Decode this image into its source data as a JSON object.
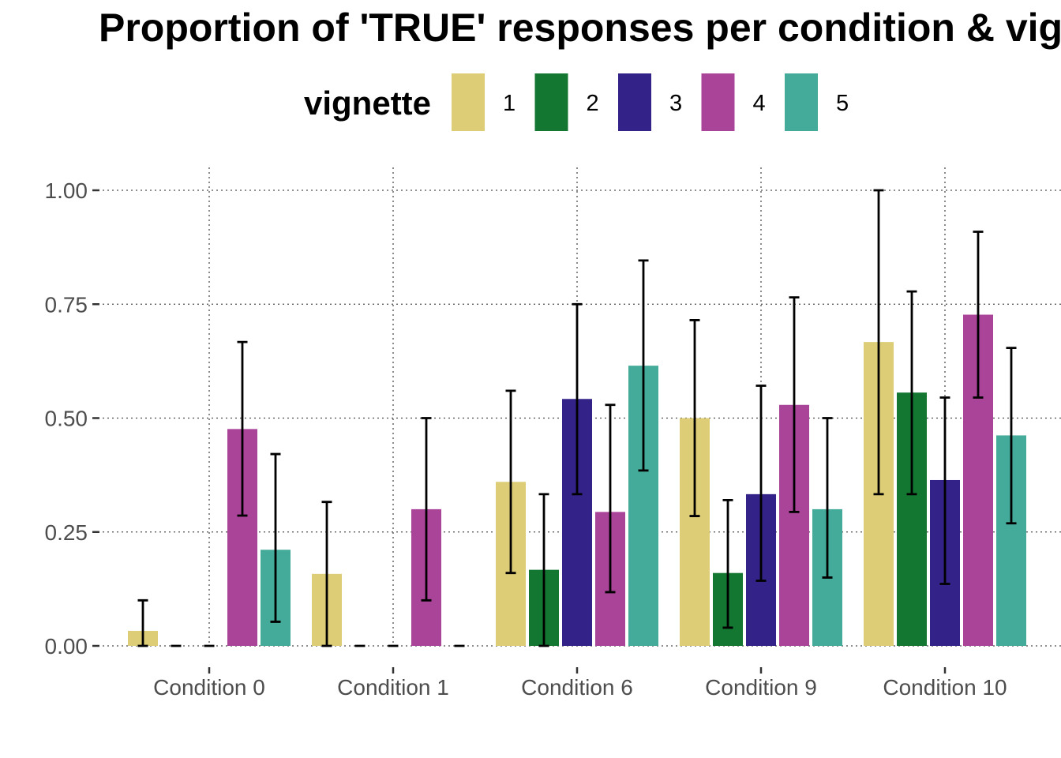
{
  "colors": {
    "series": [
      "#dccd76",
      "#137732",
      "#332288",
      "#aa4499",
      "#44aa99"
    ],
    "grid": "#4d4d4d",
    "tick_text": "#4d4d4d"
  },
  "chart_data": {
    "type": "bar",
    "title": "Proportion of 'TRUE' responses per condition & vig",
    "legend": {
      "title": "vignette",
      "placement": "top"
    },
    "categories": [
      "Condition 0",
      "Condition 1",
      "Condition 6",
      "Condition 9",
      "Condition 10"
    ],
    "ylim": [
      0,
      1
    ],
    "yticks": [
      0.0,
      0.25,
      0.5,
      0.75,
      1.0
    ],
    "ytick_labels": [
      "0.00",
      "0.25",
      "0.50",
      "0.75",
      "1.00"
    ],
    "grid": true,
    "series": [
      {
        "name": "1",
        "values": [
          0.033,
          0.158,
          0.36,
          0.5,
          0.667
        ],
        "lower": [
          0.0,
          0.0,
          0.16,
          0.285,
          0.333
        ],
        "upper": [
          0.1,
          0.316,
          0.56,
          0.715,
          1.0
        ]
      },
      {
        "name": "2",
        "values": [
          0.0,
          0.0,
          0.167,
          0.16,
          0.556
        ],
        "lower": [
          0.0,
          0.0,
          0.0,
          0.04,
          0.333
        ],
        "upper": [
          0.0,
          0.0,
          0.333,
          0.32,
          0.778
        ]
      },
      {
        "name": "3",
        "values": [
          0.0,
          0.0,
          0.542,
          0.333,
          0.364
        ],
        "lower": [
          0.0,
          0.0,
          0.333,
          0.143,
          0.136
        ],
        "upper": [
          0.0,
          0.0,
          0.75,
          0.571,
          0.545
        ]
      },
      {
        "name": "4",
        "values": [
          0.476,
          0.3,
          0.294,
          0.529,
          0.727
        ],
        "lower": [
          0.286,
          0.1,
          0.118,
          0.294,
          0.545
        ],
        "upper": [
          0.667,
          0.5,
          0.529,
          0.765,
          0.909
        ]
      },
      {
        "name": "5",
        "values": [
          0.211,
          0.0,
          0.615,
          0.3,
          0.462
        ],
        "lower": [
          0.053,
          0.0,
          0.385,
          0.15,
          0.269
        ],
        "upper": [
          0.421,
          0.0,
          0.846,
          0.5,
          0.654
        ]
      }
    ]
  }
}
